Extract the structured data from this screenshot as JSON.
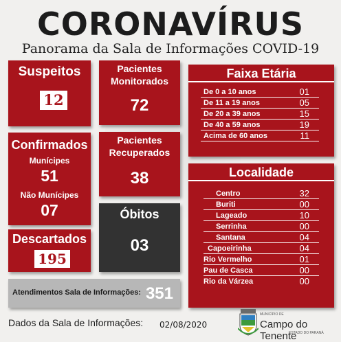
{
  "header": {
    "title": "CORONAVÍRUS",
    "subtitle": "Panorama da Sala de Informações COVID-19"
  },
  "suspeitos": {
    "label": "Suspeitos",
    "value": "12"
  },
  "confirmados": {
    "label": "Confirmados",
    "municipes_label": "Munícipes",
    "municipes_value": "51",
    "nao_municipes_label": "Não Munícipes",
    "nao_municipes_value": "07"
  },
  "descartados": {
    "label": "Descartados",
    "value": "195"
  },
  "monitorados": {
    "label_line1": "Pacientes",
    "label_line2": "Monitorados",
    "value": "72"
  },
  "recuperados": {
    "label_line1": "Pacientes",
    "label_line2": "Recuperados",
    "value": "38"
  },
  "obitos": {
    "label": "Óbitos",
    "value": "03"
  },
  "faixa_etaria": {
    "title": "Faixa Etária",
    "rows": [
      {
        "label": "De 0 a 10 anos",
        "value": "01"
      },
      {
        "label": "De 11 a 19 anos",
        "value": "05"
      },
      {
        "label": "De 20 a 39 anos",
        "value": "15"
      },
      {
        "label": "De 40 a 59 anos",
        "value": "19"
      },
      {
        "label": "Acima de 60 anos",
        "value": "11"
      }
    ]
  },
  "localidade": {
    "title": "Localidade",
    "rows": [
      {
        "label": "Centro",
        "value": "32"
      },
      {
        "label": "Buriti",
        "value": "00"
      },
      {
        "label": "Lageado",
        "value": "10"
      },
      {
        "label": "Serrinha",
        "value": "00"
      },
      {
        "label": "Santana",
        "value": "04"
      },
      {
        "label": "Capoeirinha",
        "value": "04"
      },
      {
        "label": "Rio Vermelho",
        "value": "01"
      },
      {
        "label": "Pau de Casca",
        "value": "00"
      },
      {
        "label": "Rio da Várzea",
        "value": "00"
      }
    ]
  },
  "atendimentos": {
    "label": "Atendimentos Sala de Informações:",
    "value": "351"
  },
  "footer": {
    "label": "Dados da Sala de Informações:",
    "date": "02/08/2020",
    "municipio_small": "MUNICÍPIO DE",
    "municipio_name": "Campo do Tenente",
    "municipio_state": "ESTADO DO PARANÁ"
  },
  "colors": {
    "red": "#a8141c",
    "dark": "#323232",
    "grey": "#b7b7b7"
  },
  "icons": {
    "seal": "municipal-coat-of-arms-icon"
  }
}
